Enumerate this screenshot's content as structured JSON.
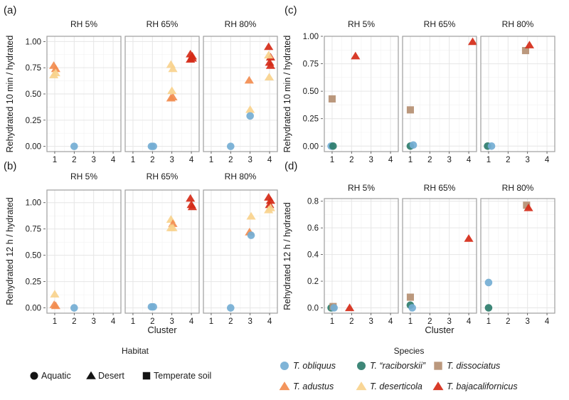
{
  "figure": {
    "strips": [
      "RH 5%",
      "RH 65%",
      "RH 80%"
    ],
    "x_label": "Cluster",
    "x_ticks": [
      1,
      2,
      3,
      4
    ]
  },
  "legend": {
    "habitat": {
      "title": "Habitat",
      "items": [
        {
          "label": "Aquatic",
          "shape": "circle"
        },
        {
          "label": "Desert",
          "shape": "triangle"
        },
        {
          "label": "Temperate soil",
          "shape": "square"
        }
      ]
    },
    "species": {
      "title": "Species",
      "items": [
        {
          "key": "obl",
          "label": "T. obliquus",
          "color": "#74aed4",
          "shape": "circle"
        },
        {
          "key": "rac",
          "label": "T. “raciborskii”",
          "color": "#2e7d6d",
          "shape": "circle"
        },
        {
          "key": "dis",
          "label": "T. dissociatus",
          "color": "#b58f72",
          "shape": "square"
        },
        {
          "key": "adu",
          "label": "T. adustus",
          "color": "#f28c4f",
          "shape": "triangle"
        },
        {
          "key": "des",
          "label": "T. deserticola",
          "color": "#f8d28d",
          "shape": "triangle"
        },
        {
          "key": "baj",
          "label": "T. bajacalifornicus",
          "color": "#d52a17",
          "shape": "triangle"
        }
      ]
    }
  },
  "chart_data": [
    {
      "id": "a",
      "panel_label": "(a)",
      "type": "scatter",
      "ylabel": "Rehydrated 10 min / hydrated",
      "xlabel": "",
      "ylim": [
        -0.05,
        1.05
      ],
      "yticks": [
        0,
        0.25,
        0.5,
        0.75,
        1.0
      ],
      "ytick_labels": [
        "0.00",
        "0.25",
        "0.50",
        "0.75",
        "1.00"
      ],
      "xlim": [
        0.6,
        4.4
      ],
      "facets": [
        {
          "strip": "RH 5%",
          "points": [
            {
              "x": 0.95,
              "y": 0.77,
              "s": "adu"
            },
            {
              "x": 1.05,
              "y": 0.74,
              "s": "adu"
            },
            {
              "x": 0.95,
              "y": 0.68,
              "s": "des"
            },
            {
              "x": 1.05,
              "y": 0.7,
              "s": "des"
            },
            {
              "x": 2.0,
              "y": 0.0,
              "s": "obl"
            }
          ]
        },
        {
          "strip": "RH 65%",
          "points": [
            {
              "x": 1.95,
              "y": 0.0,
              "s": "obl"
            },
            {
              "x": 2.05,
              "y": 0.0,
              "s": "obl"
            },
            {
              "x": 2.95,
              "y": 0.46,
              "s": "adu"
            },
            {
              "x": 3.05,
              "y": 0.47,
              "s": "adu"
            },
            {
              "x": 2.95,
              "y": 0.78,
              "s": "des"
            },
            {
              "x": 3.05,
              "y": 0.74,
              "s": "des"
            },
            {
              "x": 3.0,
              "y": 0.53,
              "s": "des"
            },
            {
              "x": 3.95,
              "y": 0.88,
              "s": "baj"
            },
            {
              "x": 4.05,
              "y": 0.86,
              "s": "baj"
            },
            {
              "x": 3.95,
              "y": 0.83,
              "s": "baj"
            },
            {
              "x": 4.05,
              "y": 0.84,
              "s": "baj"
            }
          ]
        },
        {
          "strip": "RH 80%",
          "points": [
            {
              "x": 2.0,
              "y": 0.0,
              "s": "obl"
            },
            {
              "x": 2.95,
              "y": 0.63,
              "s": "adu"
            },
            {
              "x": 3.0,
              "y": 0.35,
              "s": "des"
            },
            {
              "x": 3.0,
              "y": 0.29,
              "s": "obl"
            },
            {
              "x": 3.95,
              "y": 0.95,
              "s": "baj"
            },
            {
              "x": 4.05,
              "y": 0.85,
              "s": "baj"
            },
            {
              "x": 4.0,
              "y": 0.8,
              "s": "baj"
            },
            {
              "x": 4.05,
              "y": 0.77,
              "s": "baj"
            },
            {
              "x": 3.95,
              "y": 0.87,
              "s": "des"
            },
            {
              "x": 3.98,
              "y": 0.66,
              "s": "des"
            }
          ]
        }
      ]
    },
    {
      "id": "b",
      "panel_label": "(b)",
      "type": "scatter",
      "ylabel": "Rehydrated 12 h / hydrated",
      "xlabel": "Cluster",
      "ylim": [
        -0.05,
        1.12
      ],
      "yticks": [
        0,
        0.25,
        0.5,
        0.75,
        1.0
      ],
      "ytick_labels": [
        "0.00",
        "0.25",
        "0.50",
        "0.75",
        "1.00"
      ],
      "xlim": [
        0.6,
        4.4
      ],
      "facets": [
        {
          "strip": "RH 5%",
          "points": [
            {
              "x": 1.0,
              "y": 0.13,
              "s": "des"
            },
            {
              "x": 0.97,
              "y": 0.03,
              "s": "adu"
            },
            {
              "x": 1.05,
              "y": 0.02,
              "s": "adu"
            },
            {
              "x": 2.0,
              "y": 0.0,
              "s": "obl"
            }
          ]
        },
        {
          "strip": "RH 65%",
          "points": [
            {
              "x": 1.95,
              "y": 0.01,
              "s": "obl"
            },
            {
              "x": 2.05,
              "y": 0.01,
              "s": "obl"
            },
            {
              "x": 2.95,
              "y": 0.84,
              "s": "des"
            },
            {
              "x": 3.05,
              "y": 0.8,
              "s": "adu"
            },
            {
              "x": 2.95,
              "y": 0.76,
              "s": "des"
            },
            {
              "x": 3.05,
              "y": 0.76,
              "s": "des"
            },
            {
              "x": 3.95,
              "y": 1.04,
              "s": "baj"
            },
            {
              "x": 4.0,
              "y": 0.98,
              "s": "baj"
            },
            {
              "x": 4.05,
              "y": 0.96,
              "s": "baj"
            }
          ]
        },
        {
          "strip": "RH 80%",
          "points": [
            {
              "x": 2.0,
              "y": 0.0,
              "s": "obl"
            },
            {
              "x": 2.97,
              "y": 0.72,
              "s": "adu"
            },
            {
              "x": 3.05,
              "y": 0.87,
              "s": "des"
            },
            {
              "x": 3.05,
              "y": 0.69,
              "s": "obl"
            },
            {
              "x": 3.95,
              "y": 1.05,
              "s": "baj"
            },
            {
              "x": 4.05,
              "y": 1.02,
              "s": "baj"
            },
            {
              "x": 4.0,
              "y": 0.98,
              "s": "baj"
            },
            {
              "x": 3.95,
              "y": 0.93,
              "s": "des"
            },
            {
              "x": 4.05,
              "y": 0.95,
              "s": "des"
            }
          ]
        }
      ]
    },
    {
      "id": "c",
      "panel_label": "(c)",
      "type": "scatter",
      "ylabel": "Rehydrated 10 min / hydrated",
      "xlabel": "",
      "ylim": [
        -0.05,
        1.0
      ],
      "yticks": [
        0,
        0.25,
        0.5,
        0.75,
        1.0
      ],
      "ytick_labels": [
        "0.00",
        "0.25",
        "0.50",
        "0.75",
        "1.00"
      ],
      "xlim": [
        0.6,
        4.4
      ],
      "facets": [
        {
          "strip": "RH 5%",
          "points": [
            {
              "x": 0.95,
              "y": 0.0,
              "s": "obl"
            },
            {
              "x": 1.05,
              "y": 0.0,
              "s": "rac"
            },
            {
              "x": 1.0,
              "y": 0.43,
              "s": "dis"
            },
            {
              "x": 2.2,
              "y": 0.82,
              "s": "baj"
            }
          ]
        },
        {
          "strip": "RH 65%",
          "points": [
            {
              "x": 1.0,
              "y": 0.0,
              "s": "rac"
            },
            {
              "x": 1.15,
              "y": 0.01,
              "s": "obl"
            },
            {
              "x": 1.0,
              "y": 0.33,
              "s": "dis"
            },
            {
              "x": 4.2,
              "y": 0.95,
              "s": "baj"
            }
          ]
        },
        {
          "strip": "RH 80%",
          "points": [
            {
              "x": 0.95,
              "y": 0.0,
              "s": "rac"
            },
            {
              "x": 1.15,
              "y": 0.0,
              "s": "obl"
            },
            {
              "x": 2.9,
              "y": 0.87,
              "s": "dis"
            },
            {
              "x": 3.1,
              "y": 0.92,
              "s": "baj"
            }
          ]
        }
      ]
    },
    {
      "id": "d",
      "panel_label": "(d)",
      "type": "scatter",
      "ylabel": "Rehydrated 12 h / hydrated",
      "xlabel": "Cluster",
      "ylim": [
        -0.04,
        0.82
      ],
      "yticks": [
        0,
        0.2,
        0.4,
        0.6,
        0.8
      ],
      "ytick_labels": [
        "0.0",
        "0.2",
        "0.4",
        "0.6",
        "0.8"
      ],
      "xlim": [
        0.6,
        4.4
      ],
      "facets": [
        {
          "strip": "RH 5%",
          "points": [
            {
              "x": 0.95,
              "y": 0.0,
              "s": "rac"
            },
            {
              "x": 1.05,
              "y": 0.01,
              "s": "dis"
            },
            {
              "x": 1.1,
              "y": 0.0,
              "s": "obl"
            },
            {
              "x": 1.9,
              "y": 0.0,
              "s": "baj"
            }
          ]
        },
        {
          "strip": "RH 65%",
          "points": [
            {
              "x": 1.0,
              "y": 0.08,
              "s": "dis"
            },
            {
              "x": 1.0,
              "y": 0.02,
              "s": "rac"
            },
            {
              "x": 1.1,
              "y": 0.0,
              "s": "obl"
            },
            {
              "x": 4.0,
              "y": 0.52,
              "s": "baj"
            }
          ]
        },
        {
          "strip": "RH 80%",
          "points": [
            {
              "x": 1.0,
              "y": 0.19,
              "s": "obl"
            },
            {
              "x": 1.0,
              "y": 0.0,
              "s": "rac"
            },
            {
              "x": 2.95,
              "y": 0.77,
              "s": "dis"
            },
            {
              "x": 3.05,
              "y": 0.75,
              "s": "baj"
            }
          ]
        }
      ]
    }
  ]
}
